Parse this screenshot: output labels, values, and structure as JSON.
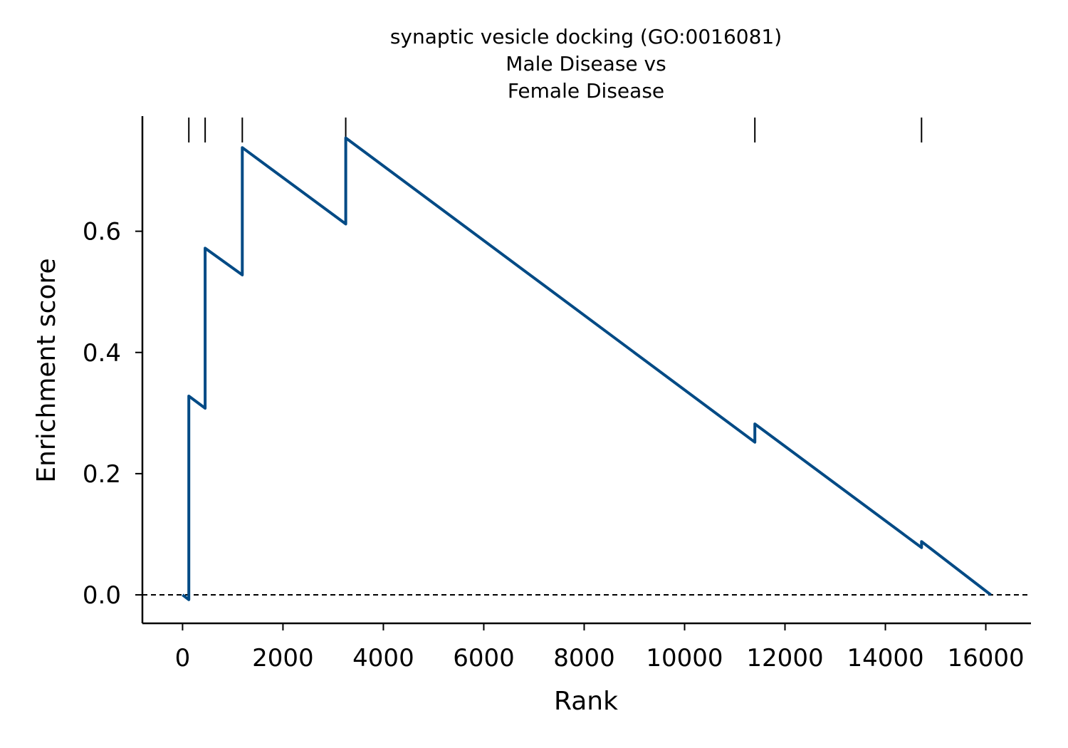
{
  "chart_data": {
    "type": "line",
    "title_lines": [
      "synaptic vesicle docking (GO:0016081)",
      "Male Disease vs",
      "Female Disease"
    ],
    "xlabel": "Rank",
    "ylabel": "Enrichment score",
    "xlim": [
      -800,
      16900
    ],
    "ylim": [
      -0.047,
      0.79
    ],
    "xticks": [
      0,
      2000,
      4000,
      6000,
      8000,
      10000,
      12000,
      14000,
      16000
    ],
    "xtick_labels": [
      "0",
      "2000",
      "4000",
      "6000",
      "8000",
      "10000",
      "12000",
      "14000",
      "16000"
    ],
    "yticks": [
      0.0,
      0.2,
      0.4,
      0.6
    ],
    "ytick_labels": [
      "0.0",
      "0.2",
      "0.4",
      "0.6"
    ],
    "line_color": "#004a85",
    "baseline": 0.0,
    "grid": false,
    "legend": false,
    "hit_ranks": [
      125,
      450,
      1190,
      3250,
      11400,
      14720
    ],
    "series": [
      {
        "x": [
          0,
          125,
          125,
          450,
          450,
          1190,
          1190,
          3250,
          3250,
          11400,
          11400,
          14720,
          14720,
          16100
        ],
        "y": [
          0.0,
          -0.008,
          0.328,
          0.308,
          0.572,
          0.528,
          0.738,
          0.612,
          0.754,
          0.252,
          0.282,
          0.078,
          0.088,
          0.0
        ]
      }
    ]
  }
}
